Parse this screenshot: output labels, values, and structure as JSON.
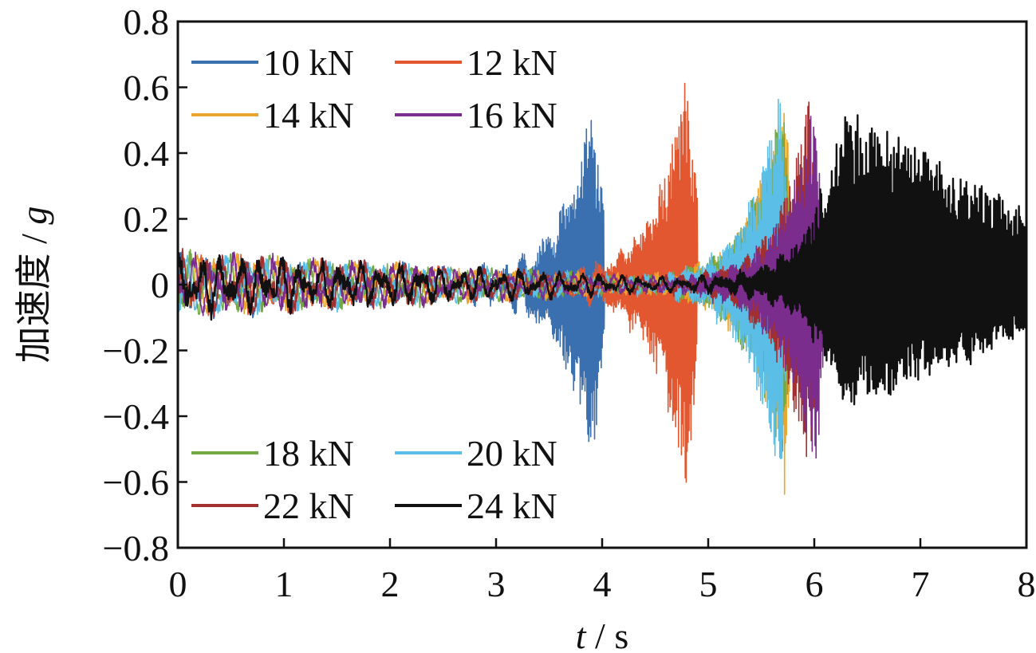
{
  "chart_data": {
    "type": "line",
    "title": "",
    "xlabel_var": "t",
    "xlabel_sep": " / ",
    "xlabel_unit": "s",
    "ylabel_text": "加速度",
    "ylabel_sep": " / ",
    "ylabel_unit": "g",
    "xlim": [
      0,
      8
    ],
    "ylim": [
      -0.8,
      0.8
    ],
    "xticks": [
      0,
      1,
      2,
      3,
      4,
      5,
      6,
      7,
      8
    ],
    "xtick_labels": [
      "0",
      "1",
      "2",
      "3",
      "4",
      "5",
      "6",
      "7",
      "8"
    ],
    "yticks": [
      0.8,
      0.6,
      0.4,
      0.2,
      0,
      -0.2,
      -0.4,
      -0.6,
      -0.8
    ],
    "ytick_labels": [
      "0.8",
      "0.6",
      "0.4",
      "0.2",
      "0",
      "−0.2",
      "−0.4",
      "−0.6",
      "−0.8"
    ],
    "grid": false,
    "legend_placement": [
      "top-left",
      "bottom-left"
    ],
    "series": [
      {
        "name": "10 kN",
        "color": "#3a6fb0",
        "peak_time": 3.9,
        "peak_max": 0.53,
        "peak_min": -0.56,
        "end_time": 4.02
      },
      {
        "name": "12 kN",
        "color": "#e2572f",
        "peak_time": 4.8,
        "peak_max": 0.66,
        "peak_min": -0.65,
        "end_time": 4.9
      },
      {
        "name": "14 kN",
        "color": "#eaa52c",
        "peak_time": 5.72,
        "peak_max": 0.64,
        "peak_min": -0.64,
        "end_time": 5.78
      },
      {
        "name": "16 kN",
        "color": "#7b2d8e",
        "peak_time": 6.02,
        "peak_max": 0.59,
        "peak_min": -0.63,
        "end_time": 6.08
      },
      {
        "name": "18 kN",
        "color": "#73a845",
        "peak_time": 5.71,
        "peak_max": 0.63,
        "peak_min": -0.62,
        "end_time": 5.76
      },
      {
        "name": "20 kN",
        "color": "#5bbee6",
        "peak_time": 5.68,
        "peak_max": 0.61,
        "peak_min": -0.63,
        "end_time": 5.74
      },
      {
        "name": "22 kN",
        "color": "#a23030",
        "peak_time": 5.95,
        "peak_max": 0.57,
        "peak_min": -0.58,
        "end_time": 6.03
      },
      {
        "name": "24 kN",
        "color": "#111111",
        "peak_time": 6.28,
        "peak_max": 0.54,
        "peak_min": -0.38,
        "end_time": 8.0
      }
    ]
  }
}
